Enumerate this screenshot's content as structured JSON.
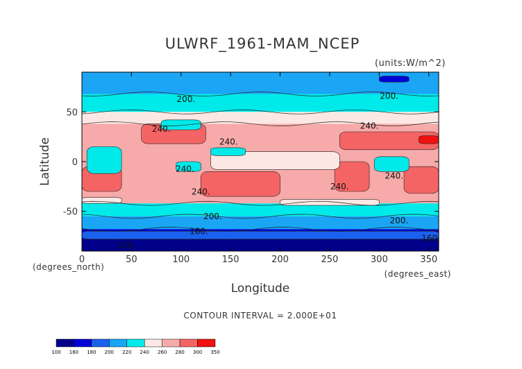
{
  "chart_data": {
    "type": "heatmap",
    "title": "ULWRF_1961-MAM_NCEP",
    "units": "(units:W/m^2)",
    "xlabel": "Longitude",
    "ylabel": "Latitude",
    "x_unit_label": "(degrees_east)",
    "y_unit_label": "(degrees_north)",
    "xlim": [
      0,
      360
    ],
    "ylim": [
      -90,
      90
    ],
    "x_ticks": [
      0,
      50,
      100,
      150,
      200,
      250,
      300,
      350
    ],
    "x_tick_labels": [
      "0",
      "50",
      "100",
      "150",
      "200",
      "250",
      "300",
      "350"
    ],
    "y_ticks": [
      50,
      0,
      -50
    ],
    "y_tick_labels": [
      "50",
      "0",
      "-50"
    ],
    "contour_interval_text": "CONTOUR INTERVAL = 2.000E+01",
    "contour_labels": [
      {
        "text": "200.",
        "x": 105,
        "y": 60
      },
      {
        "text": "200.",
        "x": 310,
        "y": 63
      },
      {
        "text": "240.",
        "x": 80,
        "y": 30
      },
      {
        "text": "240.",
        "x": 148,
        "y": 17
      },
      {
        "text": "240.",
        "x": 290,
        "y": 33
      },
      {
        "text": "240.",
        "x": 104,
        "y": -10
      },
      {
        "text": "240.",
        "x": 120,
        "y": -33
      },
      {
        "text": "240.",
        "x": 260,
        "y": -28
      },
      {
        "text": "240.",
        "x": 315,
        "y": -17
      },
      {
        "text": "200.",
        "x": 132,
        "y": -58
      },
      {
        "text": "200.",
        "x": 320,
        "y": -62
      },
      {
        "text": "160.",
        "x": 118,
        "y": -73
      },
      {
        "text": "120.",
        "x": 45,
        "y": -87
      },
      {
        "text": "160.",
        "x": 352,
        "y": -80
      }
    ],
    "levels": [
      {
        "label": "100",
        "color": "#00008b"
      },
      {
        "label": "160",
        "color": "#0000d8"
      },
      {
        "label": "180",
        "color": "#1a62ee"
      },
      {
        "label": "200",
        "color": "#1aa5f5"
      },
      {
        "label": "220",
        "color": "#00eaea"
      },
      {
        "label": "240",
        "color": "#fbe8e4"
      },
      {
        "label": "260",
        "color": "#f7aaaa"
      },
      {
        "label": "280",
        "color": "#f46464"
      },
      {
        "label": "300",
        "color": "#f01010"
      },
      {
        "label": "350",
        "color": ""
      }
    ],
    "bands": {
      "colors": {
        "c100": "#00008b",
        "c160": "#0000d8",
        "c180": "#1a62ee",
        "c200": "#1aa5f5",
        "c220": "#00eaea",
        "c240": "#fbe8e4",
        "c260": "#f7aaaa",
        "c280": "#f46464",
        "c300": "#f01010"
      },
      "zonal": [
        {
          "lat_top": 90,
          "lat_bottom": 68,
          "color": "c200"
        },
        {
          "lat_top": 68,
          "lat_bottom": 50,
          "color": "c220"
        },
        {
          "lat_top": 50,
          "lat_bottom": 38,
          "color": "c240"
        },
        {
          "lat_top": 38,
          "lat_bottom": -42,
          "color": "c260"
        },
        {
          "lat_top": -42,
          "lat_bottom": -55,
          "color": "c220"
        },
        {
          "lat_top": -55,
          "lat_bottom": -68,
          "color": "c200"
        },
        {
          "lat_top": -68,
          "lat_bottom": -90,
          "color": "c160"
        }
      ],
      "patches": [
        {
          "lon": [
            0,
            360
          ],
          "lat": [
            -78,
            -90
          ],
          "color": "c100"
        },
        {
          "lon": [
            0,
            360
          ],
          "lat": [
            -70,
            -78
          ],
          "color": "c180"
        },
        {
          "lon": [
            300,
            330
          ],
          "lat": [
            86,
            80
          ],
          "color": "c160"
        },
        {
          "lon": [
            60,
            125
          ],
          "lat": [
            38,
            18
          ],
          "color": "c280"
        },
        {
          "lon": [
            260,
            360
          ],
          "lat": [
            30,
            12
          ],
          "color": "c280"
        },
        {
          "lon": [
            340,
            360
          ],
          "lat": [
            26,
            18
          ],
          "color": "c300"
        },
        {
          "lon": [
            0,
            40
          ],
          "lat": [
            -5,
            -30
          ],
          "color": "c280"
        },
        {
          "lon": [
            120,
            200
          ],
          "lat": [
            -10,
            -35
          ],
          "color": "c280"
        },
        {
          "lon": [
            255,
            290
          ],
          "lat": [
            0,
            -30
          ],
          "color": "c280"
        },
        {
          "lon": [
            325,
            360
          ],
          "lat": [
            -5,
            -32
          ],
          "color": "c280"
        },
        {
          "lon": [
            130,
            260
          ],
          "lat": [
            10,
            -8
          ],
          "color": "c240"
        },
        {
          "lon": [
            5,
            40
          ],
          "lat": [
            15,
            -12
          ],
          "color": "c220"
        },
        {
          "lon": [
            130,
            165
          ],
          "lat": [
            14,
            6
          ],
          "color": "c220"
        },
        {
          "lon": [
            95,
            120
          ],
          "lat": [
            0,
            -10
          ],
          "color": "c220"
        },
        {
          "lon": [
            295,
            330
          ],
          "lat": [
            5,
            -10
          ],
          "color": "c220"
        },
        {
          "lon": [
            80,
            120
          ],
          "lat": [
            42,
            32
          ],
          "color": "c220"
        },
        {
          "lon": [
            0,
            40
          ],
          "lat": [
            -36,
            -42
          ],
          "color": "c240"
        },
        {
          "lon": [
            200,
            300
          ],
          "lat": [
            -38,
            -44
          ],
          "color": "c240"
        }
      ]
    }
  }
}
